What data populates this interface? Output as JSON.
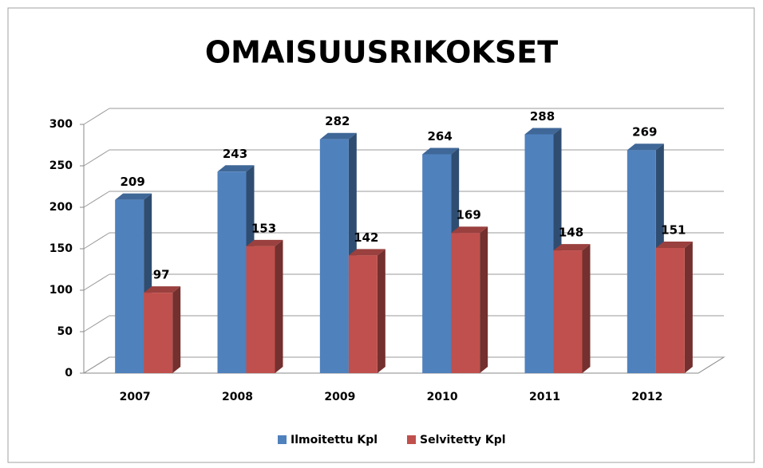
{
  "chart_data": {
    "type": "bar",
    "title": "OMAISUUSRIKOKSET",
    "categories": [
      "2007",
      "2008",
      "2009",
      "2010",
      "2011",
      "2012"
    ],
    "series": [
      {
        "name": "Ilmoitettu Kpl",
        "color": "#4f81bd",
        "values": [
          209,
          243,
          282,
          264,
          288,
          269
        ]
      },
      {
        "name": "Selvitetty Kpl",
        "color": "#c0504d",
        "values": [
          97,
          153,
          142,
          169,
          148,
          151
        ]
      }
    ],
    "ylim": [
      0,
      300
    ],
    "yticks": [
      0,
      50,
      100,
      150,
      200,
      250,
      300
    ],
    "grid": true,
    "legend": "bottom"
  }
}
